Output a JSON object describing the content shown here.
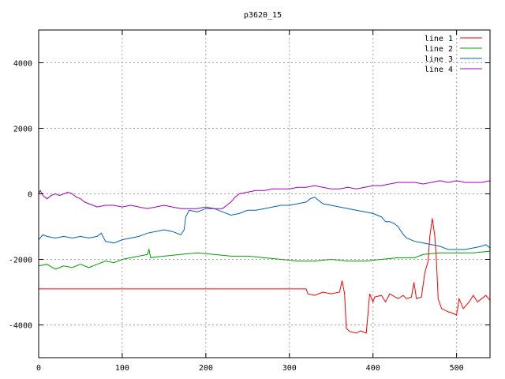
{
  "chart_data": {
    "type": "line",
    "title": "p3620_15",
    "xlabel": "",
    "ylabel": "",
    "xlim": [
      0,
      540
    ],
    "ylim": [
      -5000,
      5000
    ],
    "xticks": [
      0,
      100,
      200,
      300,
      400,
      500
    ],
    "yticks": [
      -4000,
      -2000,
      0,
      2000,
      4000
    ],
    "grid": true,
    "legend_position": "top-right",
    "series": [
      {
        "name": "line 1",
        "color": "#ff0000",
        "points": [
          [
            0,
            -2900
          ],
          [
            320,
            -2900
          ],
          [
            322,
            -3050
          ],
          [
            330,
            -3100
          ],
          [
            340,
            -3000
          ],
          [
            350,
            -3050
          ],
          [
            360,
            -3000
          ],
          [
            363,
            -2650
          ],
          [
            366,
            -3050
          ],
          [
            368,
            -4100
          ],
          [
            372,
            -4200
          ],
          [
            380,
            -4250
          ],
          [
            385,
            -4180
          ],
          [
            392,
            -4250
          ],
          [
            396,
            -3050
          ],
          [
            400,
            -3300
          ],
          [
            402,
            -3150
          ],
          [
            410,
            -3100
          ],
          [
            415,
            -3300
          ],
          [
            420,
            -3050
          ],
          [
            430,
            -3200
          ],
          [
            436,
            -3100
          ],
          [
            440,
            -3200
          ],
          [
            446,
            -3150
          ],
          [
            449,
            -2700
          ],
          [
            452,
            -3200
          ],
          [
            458,
            -3150
          ],
          [
            462,
            -2400
          ],
          [
            466,
            -2050
          ],
          [
            468,
            -1300
          ],
          [
            471,
            -750
          ],
          [
            474,
            -1300
          ],
          [
            476,
            -2100
          ],
          [
            478,
            -3200
          ],
          [
            482,
            -3500
          ],
          [
            490,
            -3600
          ],
          [
            496,
            -3650
          ],
          [
            500,
            -3700
          ],
          [
            503,
            -3200
          ],
          [
            508,
            -3500
          ],
          [
            515,
            -3300
          ],
          [
            520,
            -3100
          ],
          [
            525,
            -3300
          ],
          [
            530,
            -3200
          ],
          [
            535,
            -3100
          ],
          [
            540,
            -3250
          ]
        ]
      },
      {
        "name": "line 2",
        "color": "#00a000",
        "points": [
          [
            0,
            -2200
          ],
          [
            10,
            -2150
          ],
          [
            20,
            -2300
          ],
          [
            30,
            -2200
          ],
          [
            40,
            -2250
          ],
          [
            50,
            -2150
          ],
          [
            60,
            -2250
          ],
          [
            70,
            -2150
          ],
          [
            80,
            -2050
          ],
          [
            90,
            -2100
          ],
          [
            100,
            -2000
          ],
          [
            110,
            -1950
          ],
          [
            120,
            -1900
          ],
          [
            130,
            -1850
          ],
          [
            132,
            -1700
          ],
          [
            134,
            -1950
          ],
          [
            150,
            -1900
          ],
          [
            170,
            -1850
          ],
          [
            190,
            -1800
          ],
          [
            210,
            -1850
          ],
          [
            230,
            -1900
          ],
          [
            250,
            -1900
          ],
          [
            270,
            -1950
          ],
          [
            290,
            -2000
          ],
          [
            310,
            -2050
          ],
          [
            330,
            -2050
          ],
          [
            350,
            -2000
          ],
          [
            370,
            -2050
          ],
          [
            390,
            -2050
          ],
          [
            410,
            -2000
          ],
          [
            430,
            -1950
          ],
          [
            450,
            -1950
          ],
          [
            460,
            -1850
          ],
          [
            480,
            -1800
          ],
          [
            500,
            -1800
          ],
          [
            520,
            -1800
          ],
          [
            540,
            -1750
          ]
        ]
      },
      {
        "name": "line 3",
        "color": "#0060c0",
        "points": [
          [
            0,
            -1400
          ],
          [
            5,
            -1250
          ],
          [
            10,
            -1300
          ],
          [
            20,
            -1350
          ],
          [
            30,
            -1300
          ],
          [
            40,
            -1350
          ],
          [
            50,
            -1300
          ],
          [
            60,
            -1350
          ],
          [
            70,
            -1300
          ],
          [
            75,
            -1200
          ],
          [
            80,
            -1450
          ],
          [
            90,
            -1500
          ],
          [
            100,
            -1400
          ],
          [
            110,
            -1350
          ],
          [
            120,
            -1300
          ],
          [
            130,
            -1200
          ],
          [
            140,
            -1150
          ],
          [
            150,
            -1100
          ],
          [
            160,
            -1150
          ],
          [
            170,
            -1250
          ],
          [
            174,
            -1100
          ],
          [
            176,
            -700
          ],
          [
            180,
            -500
          ],
          [
            190,
            -550
          ],
          [
            200,
            -450
          ],
          [
            210,
            -450
          ],
          [
            220,
            -550
          ],
          [
            230,
            -650
          ],
          [
            240,
            -600
          ],
          [
            250,
            -500
          ],
          [
            260,
            -500
          ],
          [
            270,
            -450
          ],
          [
            280,
            -400
          ],
          [
            290,
            -350
          ],
          [
            300,
            -350
          ],
          [
            310,
            -300
          ],
          [
            320,
            -250
          ],
          [
            325,
            -150
          ],
          [
            330,
            -100
          ],
          [
            340,
            -300
          ],
          [
            350,
            -350
          ],
          [
            360,
            -400
          ],
          [
            370,
            -450
          ],
          [
            380,
            -500
          ],
          [
            390,
            -550
          ],
          [
            400,
            -600
          ],
          [
            410,
            -700
          ],
          [
            415,
            -850
          ],
          [
            420,
            -850
          ],
          [
            425,
            -900
          ],
          [
            430,
            -1000
          ],
          [
            435,
            -1200
          ],
          [
            440,
            -1350
          ],
          [
            450,
            -1450
          ],
          [
            460,
            -1500
          ],
          [
            470,
            -1550
          ],
          [
            480,
            -1600
          ],
          [
            490,
            -1700
          ],
          [
            500,
            -1700
          ],
          [
            510,
            -1700
          ],
          [
            520,
            -1650
          ],
          [
            530,
            -1600
          ],
          [
            535,
            -1550
          ],
          [
            540,
            -1650
          ]
        ]
      },
      {
        "name": "line 4",
        "color": "#a000c0",
        "points": [
          [
            0,
            0
          ],
          [
            2,
            100
          ],
          [
            5,
            -50
          ],
          [
            10,
            -150
          ],
          [
            15,
            -50
          ],
          [
            20,
            0
          ],
          [
            25,
            -50
          ],
          [
            30,
            0
          ],
          [
            35,
            50
          ],
          [
            40,
            0
          ],
          [
            45,
            -100
          ],
          [
            50,
            -150
          ],
          [
            55,
            -250
          ],
          [
            60,
            -300
          ],
          [
            70,
            -400
          ],
          [
            80,
            -350
          ],
          [
            90,
            -350
          ],
          [
            100,
            -400
          ],
          [
            110,
            -350
          ],
          [
            120,
            -400
          ],
          [
            130,
            -450
          ],
          [
            140,
            -400
          ],
          [
            150,
            -350
          ],
          [
            160,
            -400
          ],
          [
            170,
            -450
          ],
          [
            180,
            -450
          ],
          [
            190,
            -450
          ],
          [
            200,
            -400
          ],
          [
            210,
            -450
          ],
          [
            220,
            -450
          ],
          [
            225,
            -350
          ],
          [
            230,
            -250
          ],
          [
            235,
            -100
          ],
          [
            240,
            0
          ],
          [
            250,
            50
          ],
          [
            260,
            100
          ],
          [
            270,
            100
          ],
          [
            280,
            150
          ],
          [
            290,
            150
          ],
          [
            300,
            150
          ],
          [
            310,
            200
          ],
          [
            320,
            200
          ],
          [
            330,
            250
          ],
          [
            340,
            200
          ],
          [
            350,
            150
          ],
          [
            360,
            150
          ],
          [
            370,
            200
          ],
          [
            380,
            150
          ],
          [
            390,
            200
          ],
          [
            400,
            250
          ],
          [
            410,
            250
          ],
          [
            420,
            300
          ],
          [
            430,
            350
          ],
          [
            440,
            350
          ],
          [
            450,
            350
          ],
          [
            460,
            300
          ],
          [
            470,
            350
          ],
          [
            480,
            400
          ],
          [
            490,
            350
          ],
          [
            500,
            400
          ],
          [
            510,
            350
          ],
          [
            520,
            350
          ],
          [
            530,
            350
          ],
          [
            540,
            400
          ]
        ]
      }
    ]
  }
}
